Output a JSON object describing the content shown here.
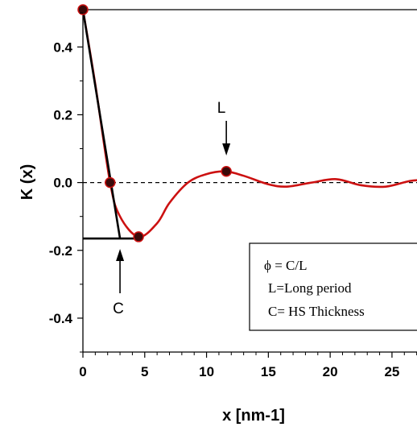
{
  "chart_data": {
    "type": "line",
    "title": "",
    "xlabel": "x [nm-1]",
    "ylabel": "K (x)",
    "xlim": [
      0,
      28
    ],
    "ylim": [
      -0.5,
      0.51
    ],
    "xticks": [
      0,
      5,
      10,
      15,
      20,
      25
    ],
    "yticks": [
      0.4,
      0.2,
      0.0,
      -0.2,
      -0.4
    ],
    "xtick_labels": [
      "0",
      "5",
      "10",
      "15",
      "20",
      "25"
    ],
    "ytick_labels": [
      "0.4",
      "0.2",
      "0.0",
      "-0.2",
      "-0.4"
    ],
    "zero_line": "dashed",
    "series": [
      {
        "color": "#cc1111",
        "x": [
          0,
          1,
          2.2,
          3,
          4.5,
          6,
          7,
          8.5,
          10,
          11.5,
          13,
          15,
          16.5,
          18.5,
          20.5,
          22.5,
          24.5,
          26.5,
          28
        ],
        "y": [
          0.51,
          0.29,
          0.0,
          -0.1,
          -0.16,
          -0.12,
          -0.06,
          0.0,
          0.025,
          0.033,
          0.02,
          -0.005,
          -0.012,
          0.0,
          0.01,
          -0.008,
          -0.012,
          0.005,
          0.008
        ]
      }
    ],
    "markers": [
      {
        "x": 0,
        "y": 0.51
      },
      {
        "x": 2.2,
        "y": 0.0
      },
      {
        "x": 4.5,
        "y": -0.16
      },
      {
        "x": 11.6,
        "y": 0.033
      }
    ],
    "tangent_line": {
      "x": [
        0,
        3.0
      ],
      "y": [
        0.51,
        -0.165
      ]
    },
    "baseline_segment": {
      "x": [
        0,
        4.5
      ],
      "y": [
        -0.165,
        -0.165
      ]
    },
    "annotations": [
      {
        "text": "L",
        "x": 11.6,
        "y": 0.22
      },
      {
        "text": "C",
        "x": 3.0,
        "y": -0.36
      }
    ],
    "legend": {
      "position": "bottom-right",
      "lines": [
        "ϕ = C/L",
        "L=Long period",
        "C= HS Thickness"
      ]
    }
  }
}
